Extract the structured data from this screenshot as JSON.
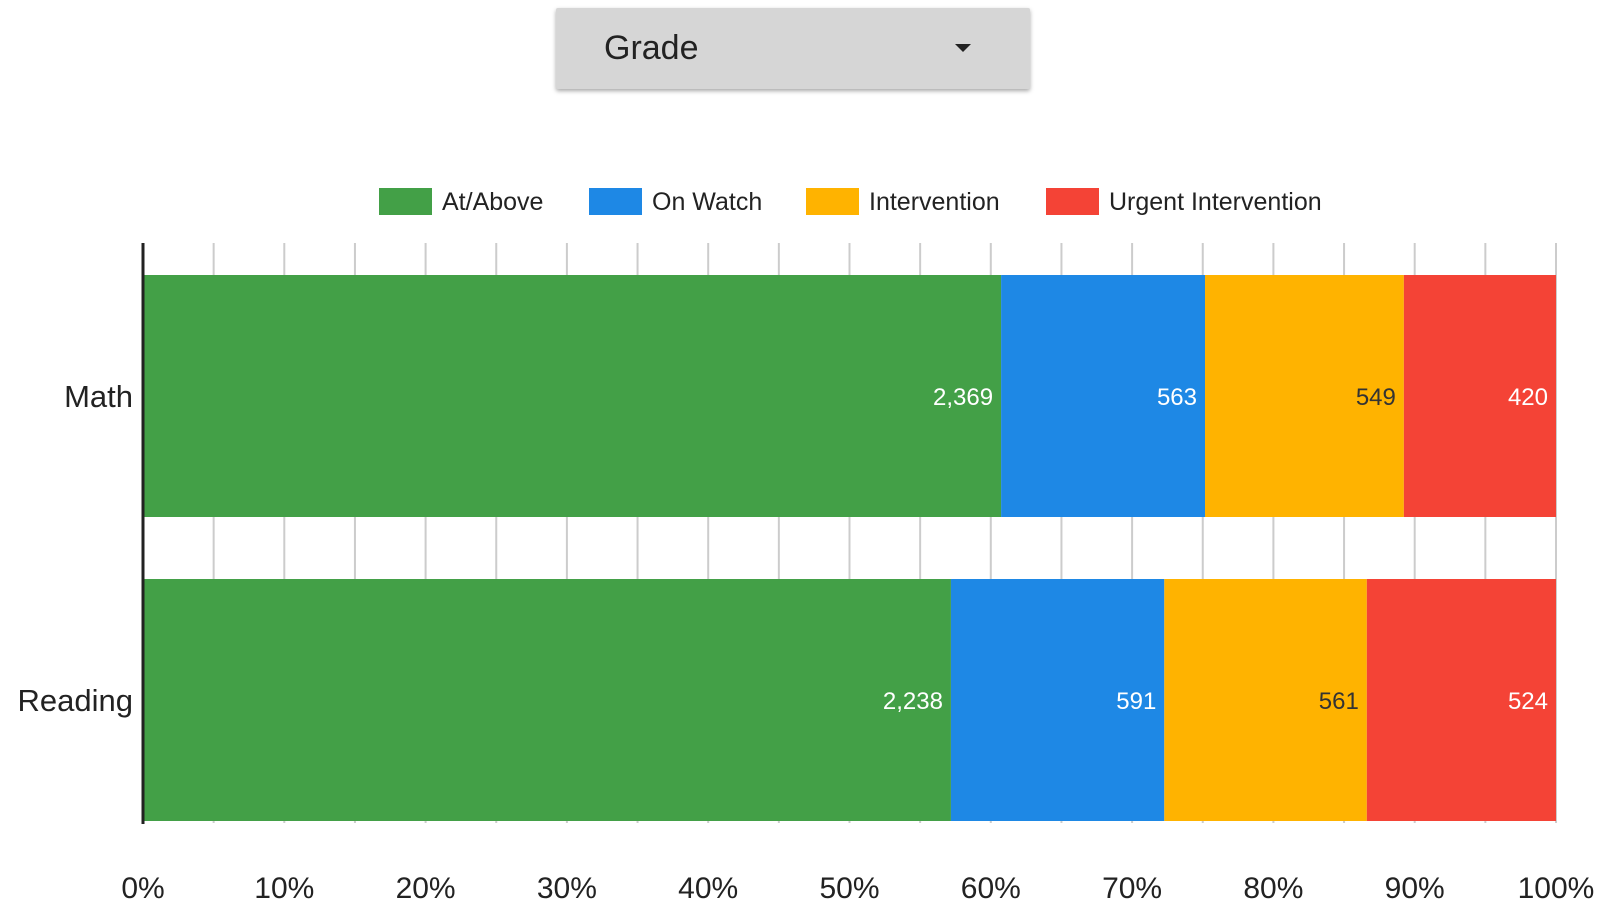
{
  "dropdown": {
    "selected": "Grade",
    "icon": "arrow-drop-down-icon"
  },
  "chart_data": {
    "type": "bar",
    "orientation": "horizontal",
    "stacked": "percent",
    "title": "",
    "xlabel": "",
    "ylabel": "",
    "categories": [
      "Math",
      "Reading"
    ],
    "series": [
      {
        "name": "At/Above",
        "color": "#43a047",
        "label_color": "#ffffff",
        "values": [
          2369,
          2238
        ],
        "labels": [
          "2,369",
          "2,238"
        ]
      },
      {
        "name": "On Watch",
        "color": "#1e88e5",
        "label_color": "#ffffff",
        "values": [
          563,
          591
        ],
        "labels": [
          "563",
          "591"
        ]
      },
      {
        "name": "Intervention",
        "color": "#ffb300",
        "label_color": "#333333",
        "values": [
          549,
          561
        ],
        "labels": [
          "549",
          "561"
        ]
      },
      {
        "name": "Urgent Intervention",
        "color": "#f44336",
        "label_color": "#ffffff",
        "values": [
          420,
          524
        ],
        "labels": [
          "420",
          "524"
        ]
      }
    ],
    "xlim": [
      0,
      100
    ],
    "x_ticks": [
      "0%",
      "10%",
      "20%",
      "30%",
      "40%",
      "50%",
      "60%",
      "70%",
      "80%",
      "90%",
      "100%"
    ],
    "grid": true,
    "legend": "top"
  }
}
